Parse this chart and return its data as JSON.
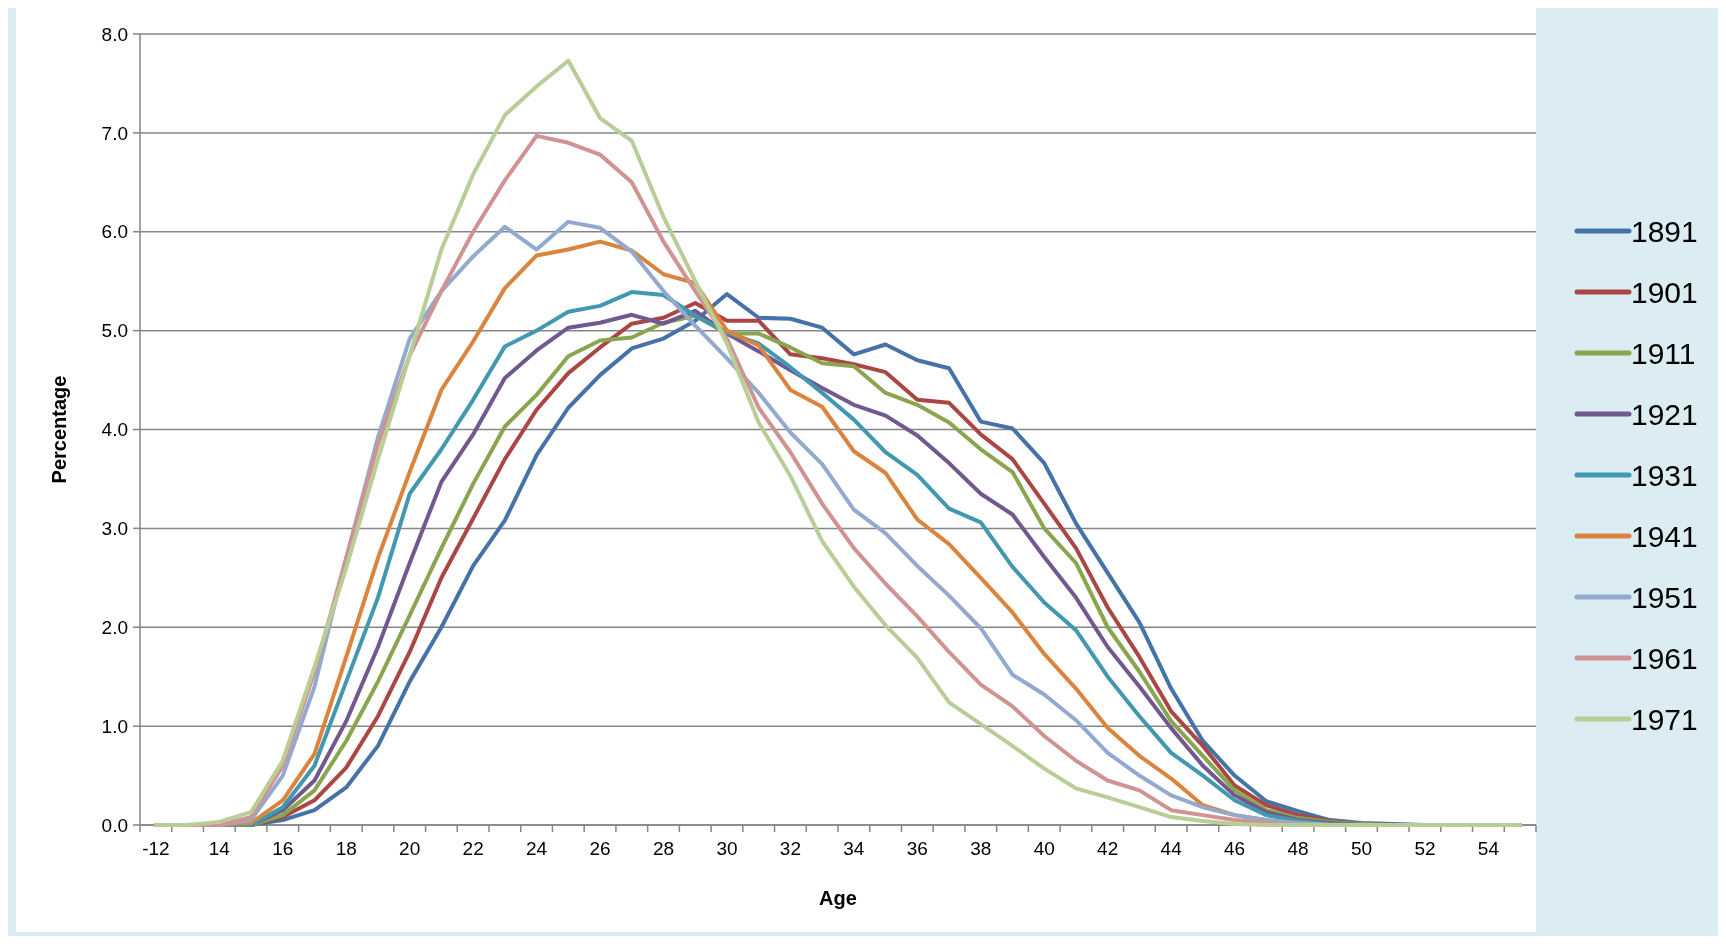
{
  "chart_data": {
    "type": "line",
    "xlabel": "Age",
    "ylabel": "Percentage",
    "categories": [
      "-12",
      null,
      "14",
      null,
      "16",
      null,
      "18",
      null,
      "20",
      null,
      "22",
      null,
      "24",
      null,
      "26",
      null,
      "28",
      null,
      "30",
      null,
      "32",
      null,
      "34",
      null,
      "36",
      null,
      "38",
      null,
      "40",
      null,
      "42",
      null,
      "44",
      null,
      "46",
      null,
      "48",
      null,
      "50",
      null,
      "52",
      null,
      "54",
      null
    ],
    "ylim": [
      0,
      8
    ],
    "yticks": [
      {
        "value": 0,
        "label": "0.0"
      },
      {
        "value": 1,
        "label": "1.0"
      },
      {
        "value": 2,
        "label": "2.0"
      },
      {
        "value": 3,
        "label": "3.0"
      },
      {
        "value": 4,
        "label": "4.0"
      },
      {
        "value": 5,
        "label": "5.0"
      },
      {
        "value": 6,
        "label": "6.0"
      },
      {
        "value": 7,
        "label": "7.0"
      },
      {
        "value": 8,
        "label": "8.0"
      }
    ],
    "grid": "y",
    "legend": "right",
    "marker": "none",
    "line_style": "solid",
    "series": [
      {
        "name": "1891",
        "color": "#4572a7",
        "values": [
          0,
          0,
          0,
          0,
          0.05,
          0.15,
          0.38,
          0.8,
          1.45,
          2.0,
          2.62,
          3.08,
          3.74,
          4.22,
          4.55,
          4.82,
          4.92,
          5.1,
          5.37,
          5.13,
          5.12,
          5.03,
          4.76,
          4.86,
          4.7,
          4.62,
          4.08,
          4.01,
          3.66,
          3.05,
          2.55,
          2.05,
          1.38,
          0.85,
          0.5,
          0.24,
          0.14,
          0.05,
          0.02,
          0.01,
          0,
          0,
          null,
          null
        ]
      },
      {
        "name": "1901",
        "color": "#aa4643",
        "values": [
          0,
          0,
          0,
          0,
          0.08,
          0.25,
          0.58,
          1.1,
          1.75,
          2.5,
          3.1,
          3.7,
          4.2,
          4.57,
          4.83,
          5.07,
          5.13,
          5.28,
          5.1,
          5.1,
          4.76,
          4.72,
          4.66,
          4.58,
          4.3,
          4.27,
          3.95,
          3.7,
          3.25,
          2.8,
          2.2,
          1.7,
          1.15,
          0.8,
          0.4,
          0.2,
          0.1,
          0.04,
          0.01,
          0,
          null,
          null,
          null,
          null
        ]
      },
      {
        "name": "1911",
        "color": "#89a54e",
        "values": [
          0,
          0,
          0,
          0,
          0.1,
          0.35,
          0.85,
          1.45,
          2.12,
          2.8,
          3.45,
          4.03,
          4.35,
          4.74,
          4.9,
          4.93,
          5.08,
          5.15,
          4.97,
          4.97,
          4.83,
          4.67,
          4.64,
          4.37,
          4.25,
          4.07,
          3.8,
          3.57,
          3.0,
          2.65,
          2.0,
          1.55,
          1.05,
          0.7,
          0.35,
          0.15,
          0.07,
          0.03,
          0.01,
          0,
          0,
          0,
          0,
          0
        ]
      },
      {
        "name": "1921",
        "color": "#71588f",
        "values": [
          0,
          0,
          0,
          0,
          0.15,
          0.45,
          1.05,
          1.8,
          2.65,
          3.47,
          3.95,
          4.52,
          4.8,
          5.03,
          5.08,
          5.16,
          5.07,
          5.2,
          4.97,
          4.79,
          4.6,
          4.42,
          4.25,
          4.14,
          3.94,
          3.66,
          3.35,
          3.14,
          2.71,
          2.3,
          1.8,
          1.4,
          0.98,
          0.6,
          0.3,
          0.13,
          0.05,
          0.02,
          0,
          0,
          0,
          0,
          0,
          0
        ]
      },
      {
        "name": "1931",
        "color": "#4198af",
        "values": [
          0,
          0,
          0,
          0,
          0.18,
          0.6,
          1.45,
          2.3,
          3.35,
          3.8,
          4.3,
          4.84,
          5.0,
          5.19,
          5.25,
          5.39,
          5.36,
          5.15,
          4.98,
          4.87,
          4.63,
          4.37,
          4.1,
          3.77,
          3.54,
          3.2,
          3.06,
          2.61,
          2.25,
          1.97,
          1.5,
          1.1,
          0.73,
          0.5,
          0.25,
          0.1,
          0.04,
          0.01,
          0,
          0,
          0,
          0,
          null,
          null
        ]
      },
      {
        "name": "1941",
        "color": "#db843d",
        "values": [
          0,
          0,
          0,
          0.02,
          0.25,
          0.72,
          1.7,
          2.7,
          3.57,
          4.4,
          4.89,
          5.43,
          5.76,
          5.82,
          5.9,
          5.81,
          5.57,
          5.48,
          5.0,
          4.85,
          4.4,
          4.23,
          3.78,
          3.56,
          3.09,
          2.84,
          2.5,
          2.15,
          1.73,
          1.38,
          0.98,
          0.7,
          0.47,
          0.2,
          0.1,
          0.05,
          0.02,
          0,
          null,
          null,
          null,
          null,
          null,
          null
        ]
      },
      {
        "name": "1951",
        "color": "#93a9cf",
        "values": [
          0,
          0,
          0,
          0.05,
          0.5,
          1.4,
          2.7,
          3.92,
          4.92,
          5.4,
          5.75,
          6.05,
          5.82,
          6.1,
          6.04,
          5.8,
          5.4,
          5.05,
          4.72,
          4.37,
          3.97,
          3.65,
          3.19,
          2.95,
          2.62,
          2.32,
          1.99,
          1.52,
          1.32,
          1.06,
          0.73,
          0.5,
          0.3,
          0.18,
          0.1,
          0.05,
          0.02,
          0,
          0,
          0,
          0,
          0,
          0,
          0
        ]
      },
      {
        "name": "1961",
        "color": "#d09392",
        "values": [
          0,
          0,
          0,
          0.08,
          0.6,
          1.55,
          2.7,
          3.85,
          4.75,
          5.4,
          6.0,
          6.52,
          6.97,
          6.9,
          6.78,
          6.5,
          5.9,
          5.4,
          4.92,
          4.22,
          3.77,
          3.25,
          2.8,
          2.44,
          2.11,
          1.75,
          1.42,
          1.2,
          0.9,
          0.65,
          0.45,
          0.35,
          0.15,
          0.1,
          0.05,
          0.02,
          0,
          0,
          0,
          0,
          0,
          0,
          0,
          0
        ]
      },
      {
        "name": "1971",
        "color": "#b9cd96",
        "values": [
          0,
          0,
          0.03,
          0.13,
          0.65,
          1.6,
          2.6,
          3.7,
          4.75,
          5.82,
          6.58,
          7.18,
          7.47,
          7.73,
          7.15,
          6.92,
          6.15,
          5.5,
          4.87,
          4.07,
          3.53,
          2.87,
          2.41,
          2.02,
          1.69,
          1.24,
          1.02,
          0.8,
          0.57,
          0.37,
          0.28,
          0.18,
          0.08,
          0.04,
          0.01,
          0,
          0,
          0,
          0,
          0,
          0,
          0,
          0,
          0
        ]
      }
    ]
  }
}
